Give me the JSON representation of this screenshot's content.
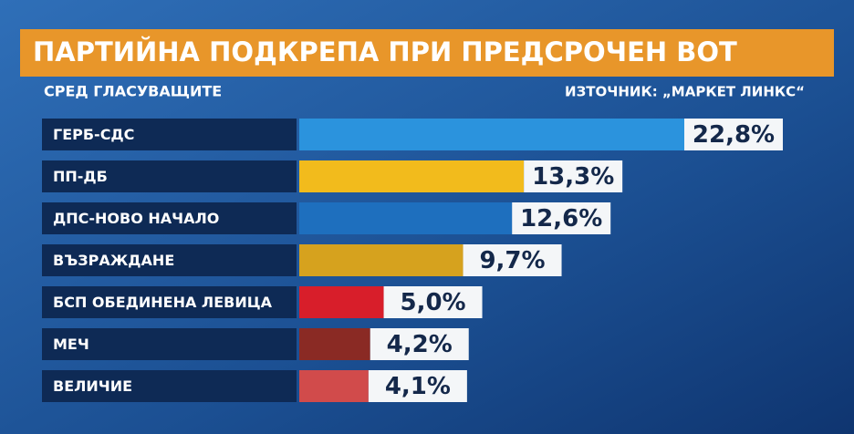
{
  "chart_data": {
    "type": "bar",
    "orientation": "horizontal",
    "title": "ПАРТИЙНА ПОДКРЕПА ПРИ ПРЕДСРОЧЕН ВОТ",
    "subtitle": "СРЕД ГЛАСУВАЩИТЕ",
    "source": "ИЗТОЧНИК: „МАРКЕТ ЛИНКС“",
    "categories": [
      "ГЕРБ-СДС",
      "ПП-ДБ",
      "ДПС-НОВО НАЧАЛО",
      "ВЪЗРАЖДАНЕ",
      "БСП ОБЕДИНЕНА ЛЕВИЦА",
      "МЕЧ",
      "ВЕЛИЧИЕ"
    ],
    "values": [
      22.8,
      13.3,
      12.6,
      9.7,
      5.0,
      4.2,
      4.1
    ],
    "value_labels": [
      "22,8%",
      "13,3%",
      "12,6%",
      "9,7%",
      "5,0%",
      "4,2%",
      "4,1%"
    ],
    "colors": [
      "#2b93dd",
      "#f2bb1c",
      "#1e6fbe",
      "#d6a21e",
      "#d81e2a",
      "#8a2a24",
      "#d14b4b"
    ]
  }
}
